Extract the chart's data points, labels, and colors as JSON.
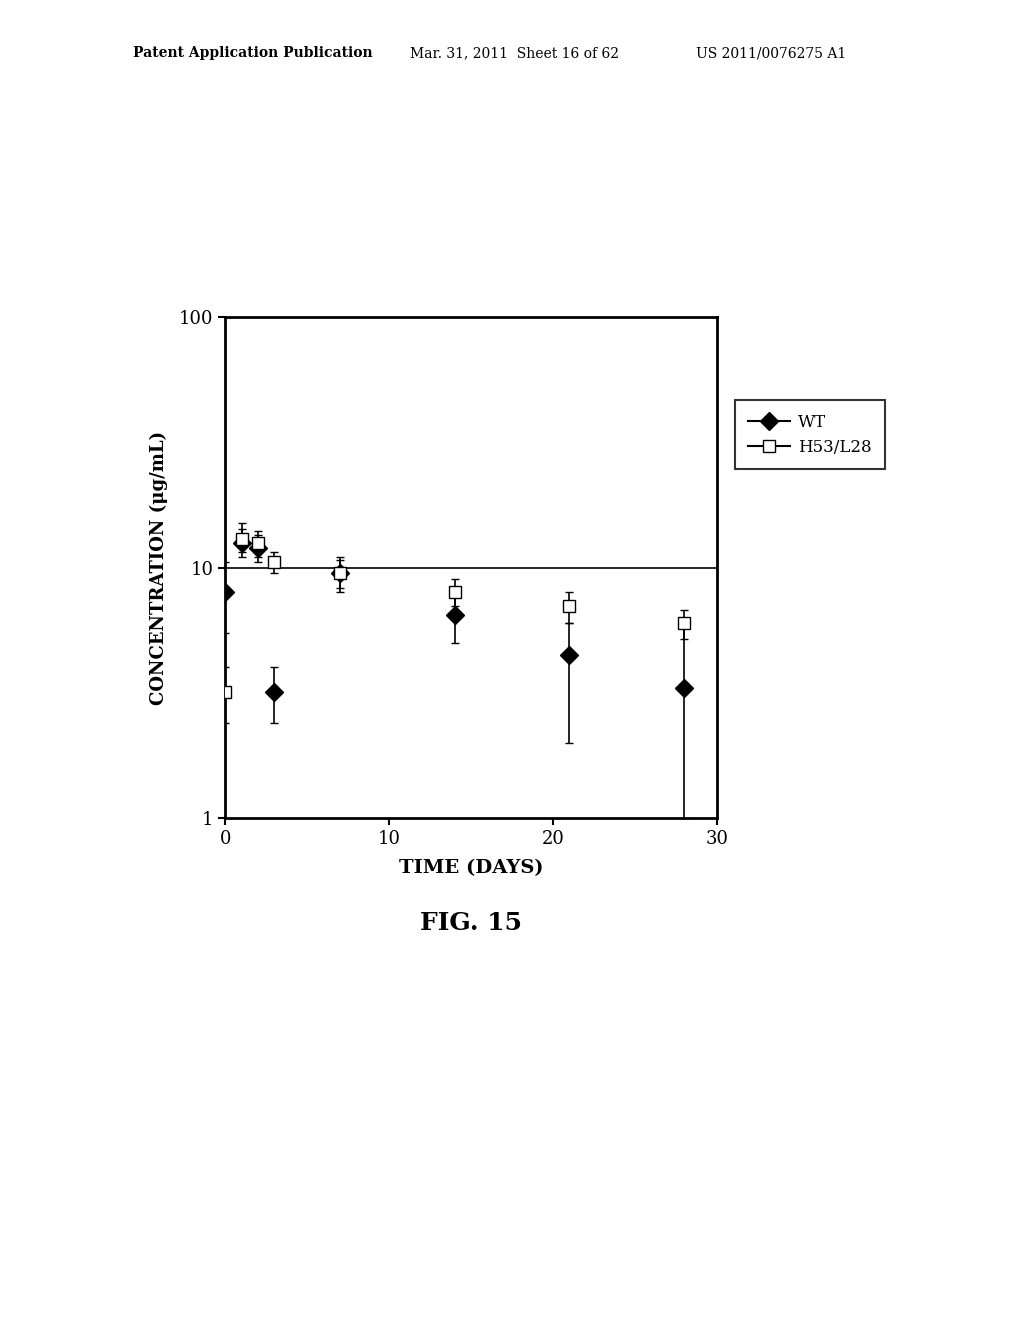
{
  "title": "FIG. 15",
  "xlabel": "TIME (DAYS)",
  "ylabel": "CONCENTRATION (μg/mL)",
  "patent_header_left": "Patent Application Publication",
  "patent_header_mid": "Mar. 31, 2011  Sheet 16 of 62",
  "patent_header_right": "US 2011/0076275 A1",
  "wt_x": [
    0,
    1,
    2,
    3,
    7,
    14,
    21,
    28
  ],
  "wt_y": [
    8.0,
    12.5,
    12.0,
    3.2,
    9.5,
    6.5,
    4.5,
    3.3
  ],
  "wt_yerr_low": [
    2.5,
    1.5,
    1.5,
    0.8,
    1.5,
    1.5,
    2.5,
    2.3
  ],
  "wt_yerr_high": [
    2.5,
    1.8,
    1.5,
    0.8,
    1.5,
    1.5,
    1.5,
    2.5
  ],
  "h53_x": [
    0,
    1,
    2,
    3,
    7,
    14,
    21,
    28
  ],
  "h53_y": [
    3.2,
    13.0,
    12.5,
    10.5,
    9.5,
    8.0,
    7.0,
    6.0
  ],
  "h53_yerr_low": [
    0.8,
    1.5,
    1.5,
    1.0,
    1.2,
    1.0,
    1.0,
    0.8
  ],
  "h53_yerr_high": [
    0.8,
    2.0,
    1.5,
    1.0,
    1.2,
    1.0,
    1.0,
    0.8
  ],
  "hline_y": 10,
  "xlim": [
    0,
    30
  ],
  "ylim_log": [
    1,
    100
  ],
  "xticks": [
    0,
    10,
    20,
    30
  ],
  "yticks": [
    1,
    10,
    100
  ],
  "background_color": "#ffffff",
  "line_color": "#000000"
}
